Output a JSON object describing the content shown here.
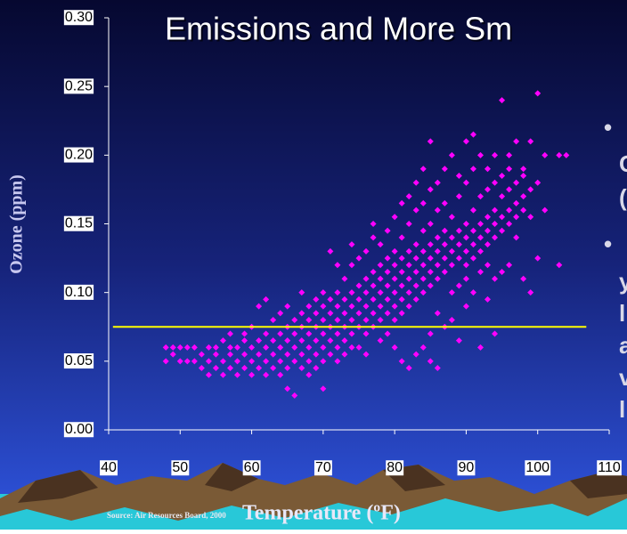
{
  "chart_data": {
    "type": "scatter",
    "title": "Emissions and More Sm",
    "y_label": "Ozone (ppm)",
    "x_label": "Temperature (ºF)",
    "source": "Source: Air Resources Board, 2000",
    "side_text": [
      "•",
      "C",
      "(",
      "•",
      "y",
      "l",
      "a",
      "v",
      "l"
    ],
    "color": "#ff00ff",
    "x": [
      48,
      48,
      49,
      49,
      50,
      50,
      51,
      51,
      52,
      52,
      53,
      53,
      54,
      54,
      54,
      55,
      55,
      55,
      56,
      56,
      56,
      57,
      57,
      57,
      57,
      58,
      58,
      58,
      59,
      59,
      59,
      59,
      60,
      60,
      60,
      60,
      61,
      61,
      61,
      61,
      62,
      62,
      62,
      62,
      62,
      63,
      63,
      63,
      63,
      64,
      64,
      64,
      64,
      64,
      65,
      65,
      65,
      65,
      65,
      65,
      66,
      66,
      66,
      66,
      66,
      67,
      67,
      67,
      67,
      67,
      67,
      68,
      68,
      68,
      68,
      68,
      68,
      69,
      69,
      69,
      69,
      69,
      69,
      70,
      70,
      70,
      70,
      70,
      70,
      70,
      71,
      71,
      71,
      71,
      71,
      71,
      72,
      72,
      72,
      72,
      72,
      72,
      72,
      73,
      73,
      73,
      73,
      73,
      73,
      74,
      74,
      74,
      74,
      74,
      74,
      74,
      75,
      75,
      75,
      75,
      75,
      75,
      76,
      76,
      76,
      76,
      76,
      76,
      76,
      77,
      77,
      77,
      77,
      77,
      77,
      77,
      78,
      78,
      78,
      78,
      78,
      78,
      78,
      79,
      79,
      79,
      79,
      79,
      79,
      79,
      80,
      80,
      80,
      80,
      80,
      80,
      80,
      80,
      81,
      81,
      81,
      81,
      81,
      81,
      81,
      81,
      82,
      82,
      82,
      82,
      82,
      82,
      82,
      82,
      83,
      83,
      83,
      83,
      83,
      83,
      83,
      83,
      84,
      84,
      84,
      84,
      84,
      84,
      84,
      84,
      85,
      85,
      85,
      85,
      85,
      85,
      85,
      85,
      85,
      86,
      86,
      86,
      86,
      86,
      86,
      86,
      86,
      87,
      87,
      87,
      87,
      87,
      87,
      87,
      88,
      88,
      88,
      88,
      88,
      88,
      88,
      89,
      89,
      89,
      89,
      89,
      89,
      89,
      90,
      90,
      90,
      90,
      90,
      90,
      90,
      90,
      91,
      91,
      91,
      91,
      91,
      91,
      91,
      92,
      92,
      92,
      92,
      92,
      92,
      92,
      93,
      93,
      93,
      93,
      93,
      93,
      93,
      94,
      94,
      94,
      94,
      94,
      94,
      94,
      95,
      95,
      95,
      95,
      95,
      95,
      96,
      96,
      96,
      96,
      96,
      96,
      97,
      97,
      97,
      97,
      97,
      98,
      98,
      98,
      98,
      98,
      99,
      99,
      99,
      99,
      100,
      100,
      100,
      101,
      101,
      103,
      103,
      104
    ],
    "values": [
      0.06,
      0.05,
      0.06,
      0.055,
      0.05,
      0.06,
      0.06,
      0.05,
      0.06,
      0.05,
      0.045,
      0.055,
      0.05,
      0.06,
      0.04,
      0.055,
      0.045,
      0.06,
      0.05,
      0.04,
      0.065,
      0.055,
      0.045,
      0.06,
      0.07,
      0.05,
      0.04,
      0.06,
      0.055,
      0.045,
      0.065,
      0.07,
      0.05,
      0.06,
      0.04,
      0.075,
      0.055,
      0.045,
      0.065,
      0.09,
      0.06,
      0.05,
      0.04,
      0.07,
      0.095,
      0.055,
      0.065,
      0.045,
      0.08,
      0.06,
      0.05,
      0.07,
      0.04,
      0.085,
      0.055,
      0.065,
      0.075,
      0.045,
      0.09,
      0.03,
      0.06,
      0.05,
      0.07,
      0.08,
      0.025,
      0.065,
      0.055,
      0.075,
      0.085,
      0.045,
      0.1,
      0.06,
      0.07,
      0.05,
      0.08,
      0.09,
      0.04,
      0.065,
      0.075,
      0.055,
      0.085,
      0.095,
      0.045,
      0.07,
      0.06,
      0.08,
      0.05,
      0.09,
      0.1,
      0.03,
      0.075,
      0.065,
      0.085,
      0.055,
      0.095,
      0.13,
      0.07,
      0.08,
      0.06,
      0.09,
      0.1,
      0.05,
      0.12,
      0.075,
      0.085,
      0.065,
      0.095,
      0.11,
      0.055,
      0.08,
      0.07,
      0.09,
      0.1,
      0.12,
      0.06,
      0.135,
      0.085,
      0.075,
      0.095,
      0.105,
      0.06,
      0.125,
      0.08,
      0.09,
      0.1,
      0.07,
      0.11,
      0.13,
      0.055,
      0.085,
      0.095,
      0.105,
      0.075,
      0.115,
      0.14,
      0.15,
      0.09,
      0.1,
      0.08,
      0.11,
      0.12,
      0.065,
      0.135,
      0.095,
      0.105,
      0.085,
      0.115,
      0.125,
      0.07,
      0.145,
      0.1,
      0.09,
      0.11,
      0.12,
      0.08,
      0.13,
      0.155,
      0.06,
      0.105,
      0.095,
      0.115,
      0.125,
      0.085,
      0.14,
      0.165,
      0.05,
      0.1,
      0.11,
      0.12,
      0.09,
      0.13,
      0.15,
      0.17,
      0.045,
      0.105,
      0.115,
      0.125,
      0.095,
      0.135,
      0.16,
      0.18,
      0.055,
      0.11,
      0.12,
      0.1,
      0.13,
      0.145,
      0.165,
      0.19,
      0.06,
      0.115,
      0.125,
      0.105,
      0.135,
      0.15,
      0.175,
      0.21,
      0.07,
      0.05,
      0.12,
      0.11,
      0.13,
      0.14,
      0.16,
      0.18,
      0.085,
      0.045,
      0.115,
      0.125,
      0.135,
      0.145,
      0.165,
      0.19,
      0.075,
      0.12,
      0.13,
      0.14,
      0.1,
      0.155,
      0.2,
      0.08,
      0.125,
      0.135,
      0.145,
      0.105,
      0.17,
      0.185,
      0.065,
      0.13,
      0.12,
      0.14,
      0.15,
      0.11,
      0.18,
      0.21,
      0.09,
      0.135,
      0.145,
      0.125,
      0.16,
      0.19,
      0.1,
      0.215,
      0.14,
      0.13,
      0.15,
      0.17,
      0.115,
      0.2,
      0.06,
      0.145,
      0.155,
      0.135,
      0.175,
      0.12,
      0.095,
      0.19,
      0.15,
      0.14,
      0.16,
      0.18,
      0.2,
      0.11,
      0.07,
      0.155,
      0.17,
      0.145,
      0.185,
      0.24,
      0.115,
      0.16,
      0.15,
      0.175,
      0.19,
      0.12,
      0.2,
      0.165,
      0.18,
      0.155,
      0.14,
      0.21,
      0.17,
      0.16,
      0.185,
      0.11,
      0.19,
      0.175,
      0.155,
      0.1,
      0.21,
      0.245,
      0.125,
      0.18,
      0.16,
      0.2,
      0.2,
      0.12,
      0.2
    ],
    "xlim": [
      40,
      110
    ],
    "ylim": [
      0,
      0.3
    ],
    "xticks": [
      40,
      50,
      60,
      70,
      80,
      90,
      100,
      110
    ],
    "yticks": [
      {
        "value": 0,
        "label": "0.00"
      },
      {
        "value": 0.05,
        "label": "0.05"
      },
      {
        "value": 0.1,
        "label": "0.10"
      },
      {
        "value": 0.15,
        "label": "0.15"
      },
      {
        "value": 0.2,
        "label": "0.20"
      },
      {
        "value": 0.25,
        "label": "0.25"
      },
      {
        "value": 0.3,
        "label": "0.30"
      }
    ],
    "reference_line": {
      "value": 0.075,
      "x": [
        40.6,
        106.8
      ],
      "color": "#ffff00"
    }
  }
}
